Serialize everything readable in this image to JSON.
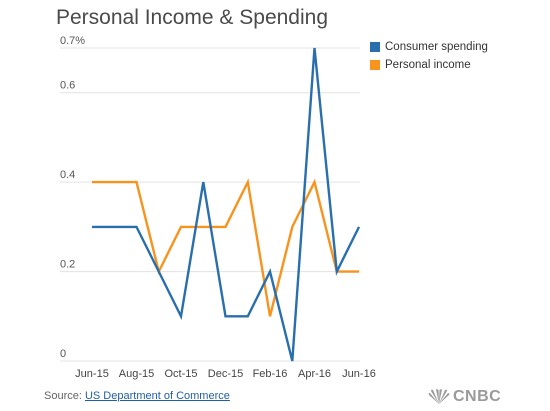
{
  "chart_data": {
    "type": "line",
    "title": "Personal Income & Spending",
    "x": [
      "Jun-15",
      "Jul-15",
      "Aug-15",
      "Sep-15",
      "Oct-15",
      "Nov-15",
      "Dec-15",
      "Jan-16",
      "Feb-16",
      "Mar-16",
      "Apr-16",
      "May-16",
      "Jun-16"
    ],
    "x_tick_labels": [
      "Jun-15",
      "Aug-15",
      "Oct-15",
      "Dec-15",
      "Feb-16",
      "Apr-16",
      "Jun-16"
    ],
    "y_tick_labels": [
      "0",
      "0.2",
      "0.4",
      "0.6",
      "0.7%"
    ],
    "y_ticks": [
      0,
      0.2,
      0.4,
      0.6,
      0.7
    ],
    "ylim": [
      0,
      0.7
    ],
    "grid": "horizontal",
    "legend_position": "top-right",
    "series": [
      {
        "name": "Consumer spending",
        "color": "#2a6fad",
        "values": [
          0.3,
          0.3,
          0.3,
          0.2,
          0.1,
          0.4,
          0.1,
          0.1,
          0.2,
          0.0,
          0.7,
          0.2,
          0.3
        ]
      },
      {
        "name": "Personal income",
        "color": "#f7941d",
        "values": [
          0.4,
          0.4,
          0.4,
          0.2,
          0.3,
          0.3,
          0.3,
          0.4,
          0.1,
          0.3,
          0.4,
          0.2,
          0.2
        ]
      }
    ]
  },
  "source": {
    "prefix": "Source: ",
    "link_text": "US Department of Commerce"
  },
  "logo": {
    "text": "CNBC",
    "icon": "nbc-peacock-icon"
  }
}
